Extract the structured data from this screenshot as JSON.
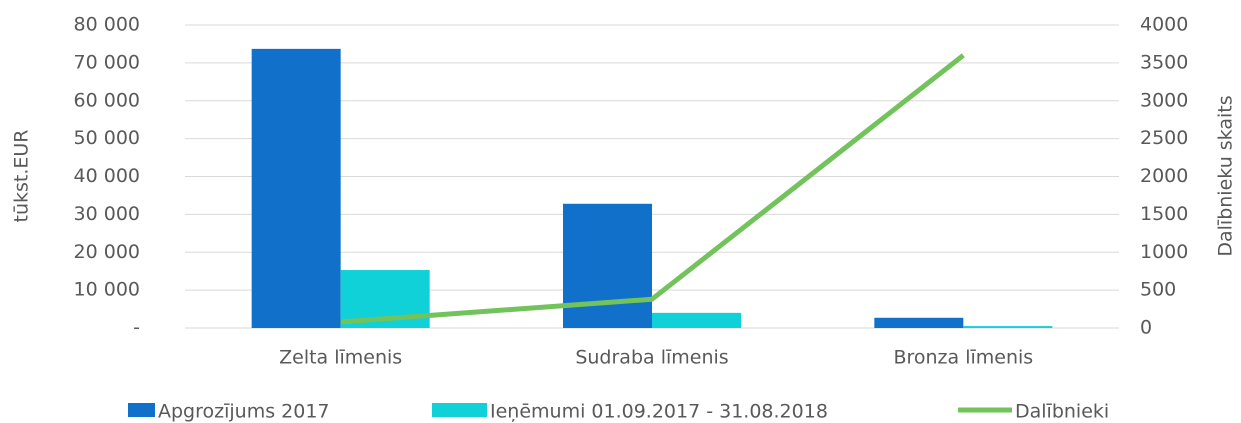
{
  "chart_data": {
    "type": "bar-line",
    "categories": [
      "Zelta līmenis",
      "Sudraba līmenis",
      "Bronza līmenis"
    ],
    "series": [
      {
        "name": "Apgrozījums 2017",
        "color": "#1170c9",
        "type": "bar",
        "values": [
          73700,
          32800,
          2700
        ]
      },
      {
        "name": "Ieņēmumi 01.09.2017 - 31.08.2018",
        "color": "#10d0d8",
        "type": "bar",
        "values": [
          15300,
          4000,
          500
        ]
      },
      {
        "name": "Dalībnieki",
        "color": "#72c35c",
        "type": "line",
        "axis": "y2",
        "values": [
          80,
          380,
          3600
        ]
      }
    ],
    "ylabel": "tūkst.EUR",
    "y2label": "Dalībnieku skaits",
    "ylim": [
      0,
      80000
    ],
    "yticks": [
      {
        "value": 0,
        "label": "-"
      },
      {
        "value": 10000,
        "label": "10 000"
      },
      {
        "value": 20000,
        "label": "20 000"
      },
      {
        "value": 30000,
        "label": "30 000"
      },
      {
        "value": 40000,
        "label": "40 000"
      },
      {
        "value": 50000,
        "label": "50 000"
      },
      {
        "value": 60000,
        "label": "60 000"
      },
      {
        "value": 70000,
        "label": "70 000"
      },
      {
        "value": 80000,
        "label": "80 000"
      }
    ],
    "y2lim": [
      0,
      4000
    ],
    "y2ticks": [
      0,
      500,
      1000,
      1500,
      2000,
      2500,
      3000,
      3500,
      4000
    ],
    "grid": true,
    "legend": "bottom"
  }
}
